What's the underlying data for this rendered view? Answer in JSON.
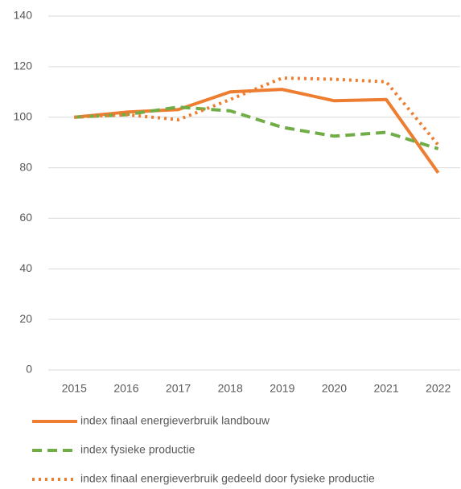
{
  "chart_data": {
    "type": "line",
    "categories": [
      "2015",
      "2016",
      "2017",
      "2018",
      "2019",
      "2020",
      "2021",
      "2022"
    ],
    "series": [
      {
        "name": "index finaal energieverbruik landbouw",
        "color": "#ed7d31",
        "dash": "solid",
        "values": [
          100,
          102,
          103,
          110,
          111,
          106.5,
          107,
          78
        ]
      },
      {
        "name": "index fysieke productie",
        "color": "#70ad47",
        "dash": "dashed",
        "values": [
          100,
          101,
          104,
          102.5,
          96,
          92.5,
          94,
          87.5
        ]
      },
      {
        "name": "index finaal energieverbruik gedeeld door fysieke productie",
        "color": "#ed7d31",
        "dash": "dotted",
        "values": [
          100,
          101,
          99,
          107,
          115.5,
          115,
          114,
          89
        ]
      }
    ],
    "ylim": [
      0,
      140
    ],
    "yticks": [
      0,
      20,
      40,
      60,
      80,
      100,
      120,
      140
    ],
    "grid": true,
    "legend": "bottom"
  }
}
